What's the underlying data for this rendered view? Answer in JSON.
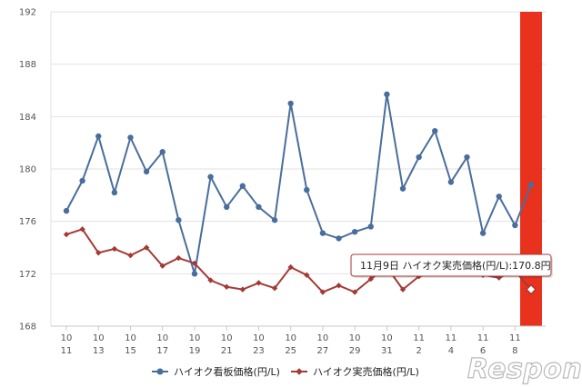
{
  "chart_data": {
    "type": "line",
    "title": "",
    "xlabel": "",
    "ylabel": "",
    "ylim": [
      168,
      192
    ],
    "yticks": [
      "192",
      "188",
      "184",
      "180",
      "176",
      "172",
      "168"
    ],
    "x_tick_labels": [
      [
        "10",
        "11"
      ],
      [
        "10",
        "13"
      ],
      [
        "10",
        "15"
      ],
      [
        "10",
        "17"
      ],
      [
        "10",
        "19"
      ],
      [
        "10",
        "21"
      ],
      [
        "10",
        "23"
      ],
      [
        "10",
        "25"
      ],
      [
        "10",
        "27"
      ],
      [
        "10",
        "29"
      ],
      [
        "10",
        "31"
      ],
      [
        "11",
        "2"
      ],
      [
        "11",
        "4"
      ],
      [
        "11",
        "6"
      ],
      [
        "11",
        "8"
      ]
    ],
    "grid": true,
    "legend_position": "bottom",
    "series": [
      {
        "name": "ハイオク看板価格(円/L)",
        "color": "#4a6e9c",
        "values": [
          176.8,
          179.1,
          182.5,
          178.2,
          182.4,
          179.8,
          181.3,
          176.1,
          172.0,
          179.4,
          177.1,
          178.7,
          177.1,
          176.1,
          185.0,
          178.4,
          175.1,
          174.7,
          175.2,
          175.6,
          185.7,
          178.5,
          180.9,
          182.9,
          179.0,
          180.9,
          175.1,
          177.9,
          175.7,
          178.8
        ]
      },
      {
        "name": "ハイオク実売価格(円/L)",
        "color": "#a33a35",
        "values": [
          175.0,
          175.4,
          173.6,
          173.9,
          173.4,
          174.0,
          172.6,
          173.2,
          172.8,
          171.5,
          171.0,
          170.8,
          171.3,
          170.9,
          172.5,
          171.9,
          170.6,
          171.1,
          170.6,
          171.6,
          172.5,
          170.8,
          171.8,
          172.0,
          172.0,
          172.1,
          171.9,
          171.7,
          172.2,
          170.8
        ]
      }
    ],
    "highlight": {
      "index": 29,
      "color": "#e8321e"
    },
    "tooltip": "11月9日 ハイオク実売価格(円/L):170.8円"
  },
  "watermark": "Response."
}
